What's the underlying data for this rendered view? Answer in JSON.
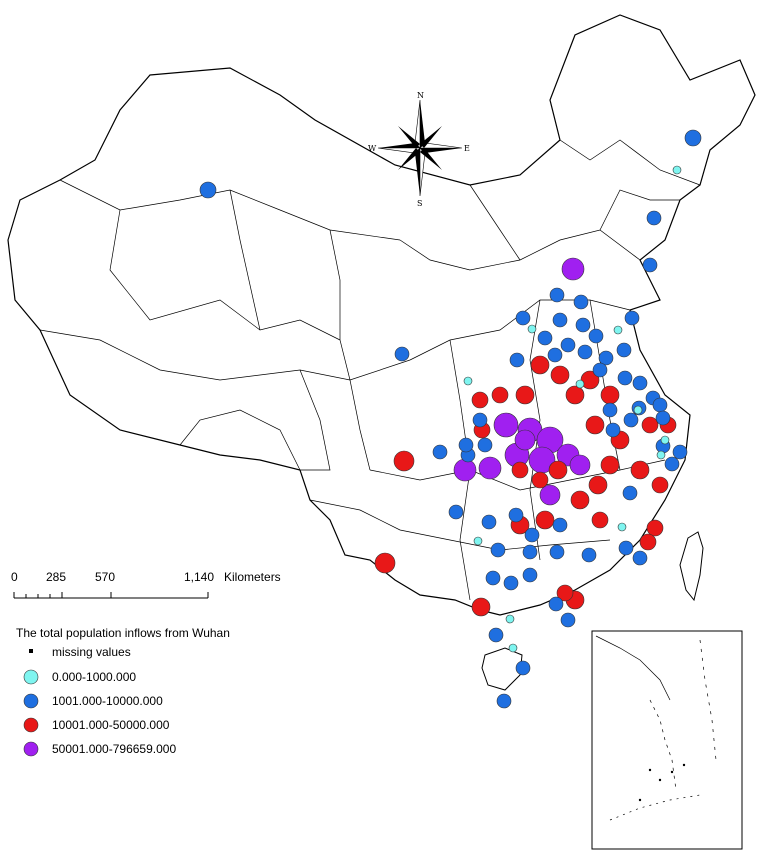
{
  "compass": {
    "north": "N",
    "south": "S",
    "east": "E",
    "west": "W"
  },
  "scale_bar": {
    "ticks": [
      "0",
      "285",
      "570",
      "1,140"
    ],
    "unit": "Kilometers"
  },
  "legend": {
    "title": "The total population inflows from Wuhan",
    "items": [
      {
        "label": "missing values",
        "color": "#000000",
        "symbol": "square"
      },
      {
        "label": "0.000-1000.000",
        "color": "#7ff5f0",
        "symbol": "circle"
      },
      {
        "label": "1001.000-10000.000",
        "color": "#1f6fe0",
        "symbol": "circle"
      },
      {
        "label": "10001.000-50000.000",
        "color": "#e81818",
        "symbol": "circle"
      },
      {
        "label": "50001.000-796659.000",
        "color": "#a020f0",
        "symbol": "circle"
      }
    ]
  },
  "class_colors": {
    "cyan": "#7ff5f0",
    "blue": "#1f6fe0",
    "red": "#e81818",
    "purple": "#a020f0"
  }
}
